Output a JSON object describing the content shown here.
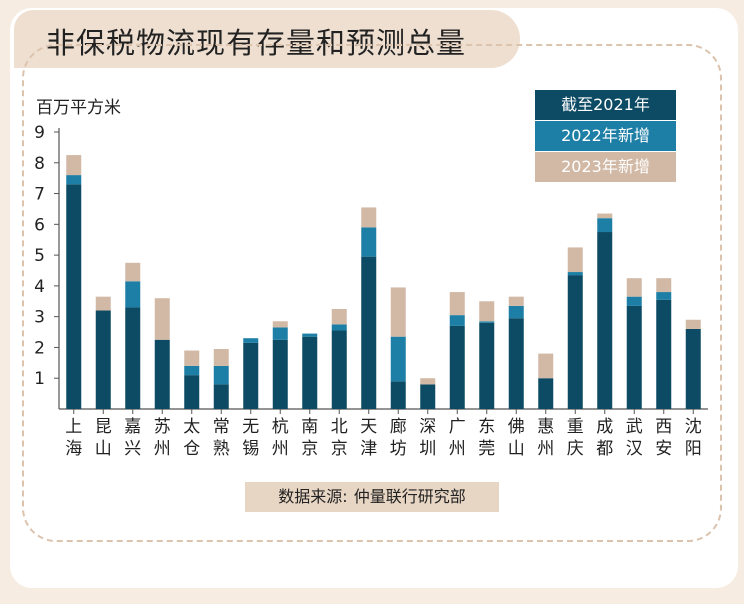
{
  "title": "非保税物流现有存量和预测总量",
  "source": {
    "label": "数据来源:",
    "value": "仲量联行研究部"
  },
  "colors": {
    "existing": "#0d4a64",
    "new2022": "#1d7fa6",
    "new2023": "#d2b9a5",
    "axis": "#555555",
    "text": "#222222"
  },
  "chart_data": {
    "type": "bar",
    "stacked": true,
    "ylabel": "百万平方米",
    "ylim": [
      0,
      9
    ],
    "yticks": [
      "1",
      "2",
      "3",
      "4",
      "5",
      "6",
      "7",
      "8",
      "9"
    ],
    "grid": false,
    "legend_position": "top-right",
    "categories": [
      "上海",
      "昆山",
      "嘉兴",
      "苏州",
      "太仓",
      "常熟",
      "无锡",
      "杭州",
      "南京",
      "北京",
      "天津",
      "廊坊",
      "深圳",
      "广州",
      "东莞",
      "佛山",
      "惠州",
      "重庆",
      "成都",
      "武汉",
      "西安",
      "沈阳"
    ],
    "series": [
      {
        "name": "截至2021年",
        "color": "#0d4a64",
        "values": [
          7.3,
          3.2,
          3.3,
          2.25,
          1.1,
          0.8,
          2.15,
          2.25,
          2.35,
          2.55,
          4.95,
          0.9,
          0.8,
          2.7,
          2.8,
          2.95,
          1.0,
          4.35,
          5.75,
          3.35,
          3.55,
          2.6
        ]
      },
      {
        "name": "2022年新增",
        "color": "#1d7fa6",
        "values": [
          0.3,
          0.0,
          0.85,
          0.0,
          0.3,
          0.6,
          0.15,
          0.4,
          0.1,
          0.2,
          0.95,
          1.45,
          0.0,
          0.35,
          0.05,
          0.4,
          0.0,
          0.1,
          0.45,
          0.3,
          0.25,
          0.0
        ]
      },
      {
        "name": "2023年新增",
        "color": "#d2b9a5",
        "values": [
          0.65,
          0.45,
          0.6,
          1.35,
          0.5,
          0.55,
          0.0,
          0.2,
          0.0,
          0.5,
          0.65,
          1.6,
          0.2,
          0.75,
          0.65,
          0.3,
          0.8,
          0.8,
          0.15,
          0.6,
          0.45,
          0.3
        ]
      }
    ]
  }
}
